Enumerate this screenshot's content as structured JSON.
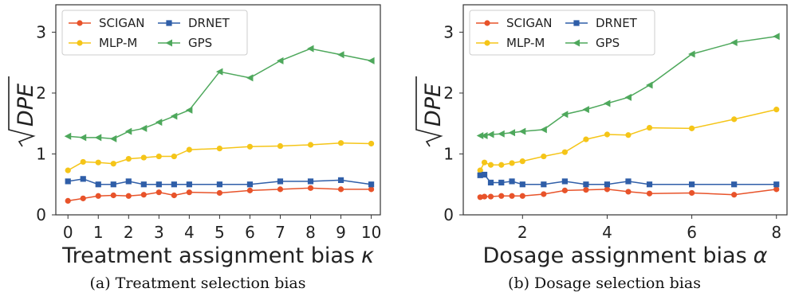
{
  "chart_data": [
    {
      "type": "line",
      "caption": "(a) Treatment selection bias",
      "xlabel": "Treatment assignment bias",
      "xlabel_symbol": "κ",
      "ylabel": "DPE",
      "xlim": [
        -0.4,
        10.3
      ],
      "ylim": [
        0,
        3.45
      ],
      "xticks": [
        0,
        1,
        2,
        3,
        4,
        5,
        6,
        7,
        8,
        9,
        10
      ],
      "yticks": [
        0,
        1,
        2,
        3
      ],
      "grid": false,
      "legend_position": "top-left",
      "x": [
        0,
        0.5,
        1,
        1.5,
        2,
        2.5,
        3,
        3.5,
        4,
        5,
        6,
        7,
        8,
        9,
        10
      ],
      "series": [
        {
          "name": "SCIGAN",
          "color": "#e8532a",
          "marker": "circle",
          "values": [
            0.23,
            0.27,
            0.31,
            0.32,
            0.31,
            0.33,
            0.37,
            0.32,
            0.37,
            0.36,
            0.4,
            0.42,
            0.44,
            0.42,
            0.42
          ]
        },
        {
          "name": "MLP-M",
          "color": "#f5c518",
          "marker": "circle",
          "values": [
            0.73,
            0.87,
            0.86,
            0.84,
            0.92,
            0.94,
            0.96,
            0.96,
            1.07,
            1.09,
            1.12,
            1.13,
            1.15,
            1.18,
            1.17
          ]
        },
        {
          "name": "DRNET",
          "color": "#2f5ea8",
          "marker": "square",
          "values": [
            0.55,
            0.59,
            0.5,
            0.5,
            0.55,
            0.5,
            0.5,
            0.5,
            0.5,
            0.5,
            0.5,
            0.55,
            0.55,
            0.57,
            0.5
          ]
        },
        {
          "name": "GPS",
          "color": "#4ea85c",
          "marker": "triangle-left",
          "values": [
            1.29,
            1.27,
            1.27,
            1.25,
            1.37,
            1.42,
            1.52,
            1.62,
            1.72,
            2.35,
            2.25,
            2.53,
            2.73,
            2.63,
            2.53
          ]
        }
      ]
    },
    {
      "type": "line",
      "caption": "(b) Dosage selection bias",
      "xlabel": "Dosage assignment bias",
      "xlabel_symbol": "α",
      "ylabel": "DPE",
      "xlim": [
        0.6,
        8.25
      ],
      "ylim": [
        0,
        3.45
      ],
      "xticks": [
        2,
        4,
        6,
        8
      ],
      "yticks": [
        0,
        1,
        2,
        3
      ],
      "grid": false,
      "legend_position": "top-left",
      "x": [
        1.0,
        1.1,
        1.25,
        1.5,
        1.75,
        2.0,
        2.5,
        3.0,
        3.5,
        4.0,
        4.5,
        5.0,
        6.0,
        7.0,
        8.0
      ],
      "series": [
        {
          "name": "SCIGAN",
          "color": "#e8532a",
          "marker": "circle",
          "values": [
            0.29,
            0.3,
            0.3,
            0.31,
            0.31,
            0.31,
            0.34,
            0.4,
            0.41,
            0.42,
            0.38,
            0.35,
            0.36,
            0.33,
            0.42
          ]
        },
        {
          "name": "MLP-M",
          "color": "#f5c518",
          "marker": "circle",
          "values": [
            0.73,
            0.86,
            0.82,
            0.82,
            0.85,
            0.88,
            0.96,
            1.03,
            1.24,
            1.32,
            1.31,
            1.43,
            1.42,
            1.57,
            1.73
          ]
        },
        {
          "name": "DRNET",
          "color": "#2f5ea8",
          "marker": "square",
          "values": [
            0.65,
            0.66,
            0.53,
            0.53,
            0.55,
            0.5,
            0.5,
            0.55,
            0.5,
            0.5,
            0.55,
            0.5,
            0.5,
            0.5,
            0.5
          ]
        },
        {
          "name": "GPS",
          "color": "#4ea85c",
          "marker": "triangle-left",
          "values": [
            1.3,
            1.3,
            1.32,
            1.33,
            1.35,
            1.37,
            1.4,
            1.65,
            1.73,
            1.83,
            1.93,
            2.13,
            2.64,
            2.83,
            2.93
          ]
        }
      ]
    }
  ]
}
